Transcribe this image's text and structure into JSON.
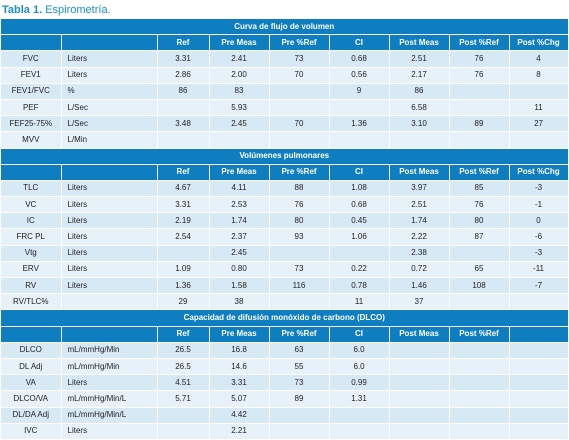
{
  "caption": {
    "label": "Tabla 1.",
    "text": " Espirometría."
  },
  "sections": [
    {
      "title": "Curva de flujo de volumen",
      "columns": [
        "",
        "",
        "Ref",
        "Pre Meas",
        "Pre %Ref",
        "CI",
        "Post Meas",
        "Post %Ref",
        "Post %Chg"
      ],
      "rows": [
        [
          "FVC",
          "Liters",
          "3.31",
          "2.41",
          "73",
          "0.68",
          "2.51",
          "76",
          "4"
        ],
        [
          "FEV1",
          "Liters",
          "2.86",
          "2.00",
          "70",
          "0.56",
          "2.17",
          "76",
          "8"
        ],
        [
          "FEV1/FVC",
          "%",
          "86",
          "83",
          "",
          "9",
          "86",
          "",
          ""
        ],
        [
          "PEF",
          "L/Sec",
          "",
          "5.93",
          "",
          "",
          "6.58",
          "",
          "11"
        ],
        [
          "FEF25-75%",
          "L/Sec",
          "3.48",
          "2.45",
          "70",
          "1.36",
          "3.10",
          "89",
          "27"
        ],
        [
          "MVV",
          "L/Min",
          "",
          "",
          "",
          "",
          "",
          "",
          ""
        ]
      ]
    },
    {
      "title": "Volúmenes pulmonares",
      "columns": [
        "",
        "",
        "Ref",
        "Pre Meas",
        "Pre %Ref",
        "CI",
        "Post Meas",
        "Post %Ref",
        "Post %Chg"
      ],
      "rows": [
        [
          "TLC",
          "Liters",
          "4.67",
          "4.11",
          "88",
          "1.08",
          "3.97",
          "85",
          "-3"
        ],
        [
          "VC",
          "Liters",
          "3.31",
          "2.53",
          "76",
          "0.68",
          "2.51",
          "76",
          "-1"
        ],
        [
          "IC",
          "Liters",
          "2.19",
          "1.74",
          "80",
          "0.45",
          "1.74",
          "80",
          "0"
        ],
        [
          "FRC PL",
          "Liters",
          "2.54",
          "2.37",
          "93",
          "1.06",
          "2.22",
          "87",
          "-6"
        ],
        [
          "Vtg",
          "Liters",
          "",
          "2.45",
          "",
          "",
          "2.38",
          "",
          "-3"
        ],
        [
          "ERV",
          "Liters",
          "1.09",
          "0.80",
          "73",
          "0.22",
          "0.72",
          "65",
          "-11"
        ],
        [
          "RV",
          "Liters",
          "1.36",
          "1.58",
          "116",
          "0.78",
          "1.46",
          "108",
          "-7"
        ],
        [
          "RV/TLC%",
          "",
          "29",
          "38",
          "",
          "11",
          "37",
          "",
          ""
        ]
      ]
    },
    {
      "title": "Capacidad de difusión monóxido de carbono (DLCO)",
      "columns": [
        "",
        "",
        "Ref",
        "Pre Meas",
        "Pre %Ref",
        "CI",
        "Post Meas",
        "Post %Ref",
        ""
      ],
      "rows": [
        [
          "DLCO",
          "mL/mmHg/Min",
          "26.5",
          "16.8",
          "63",
          "6.0",
          "",
          "",
          ""
        ],
        [
          "DL Adj",
          "mL/mmHg/Min",
          "26.5",
          "14.6",
          "55",
          "6.0",
          "",
          "",
          ""
        ],
        [
          "VA",
          "Liters",
          "4.51",
          "3.31",
          "73",
          "0.99",
          "",
          "",
          ""
        ],
        [
          "DLCO/VA",
          "mL/mmHg/Min/L",
          "5.71",
          "5.07",
          "89",
          "1.31",
          "",
          "",
          ""
        ],
        [
          "DL/DA Adj",
          "mL/mmHg/Min/L",
          "",
          "4.42",
          "",
          "",
          "",
          "",
          ""
        ],
        [
          "IVC",
          "Liters",
          "",
          "2.21",
          "",
          "",
          "",
          "",
          ""
        ]
      ]
    }
  ]
}
